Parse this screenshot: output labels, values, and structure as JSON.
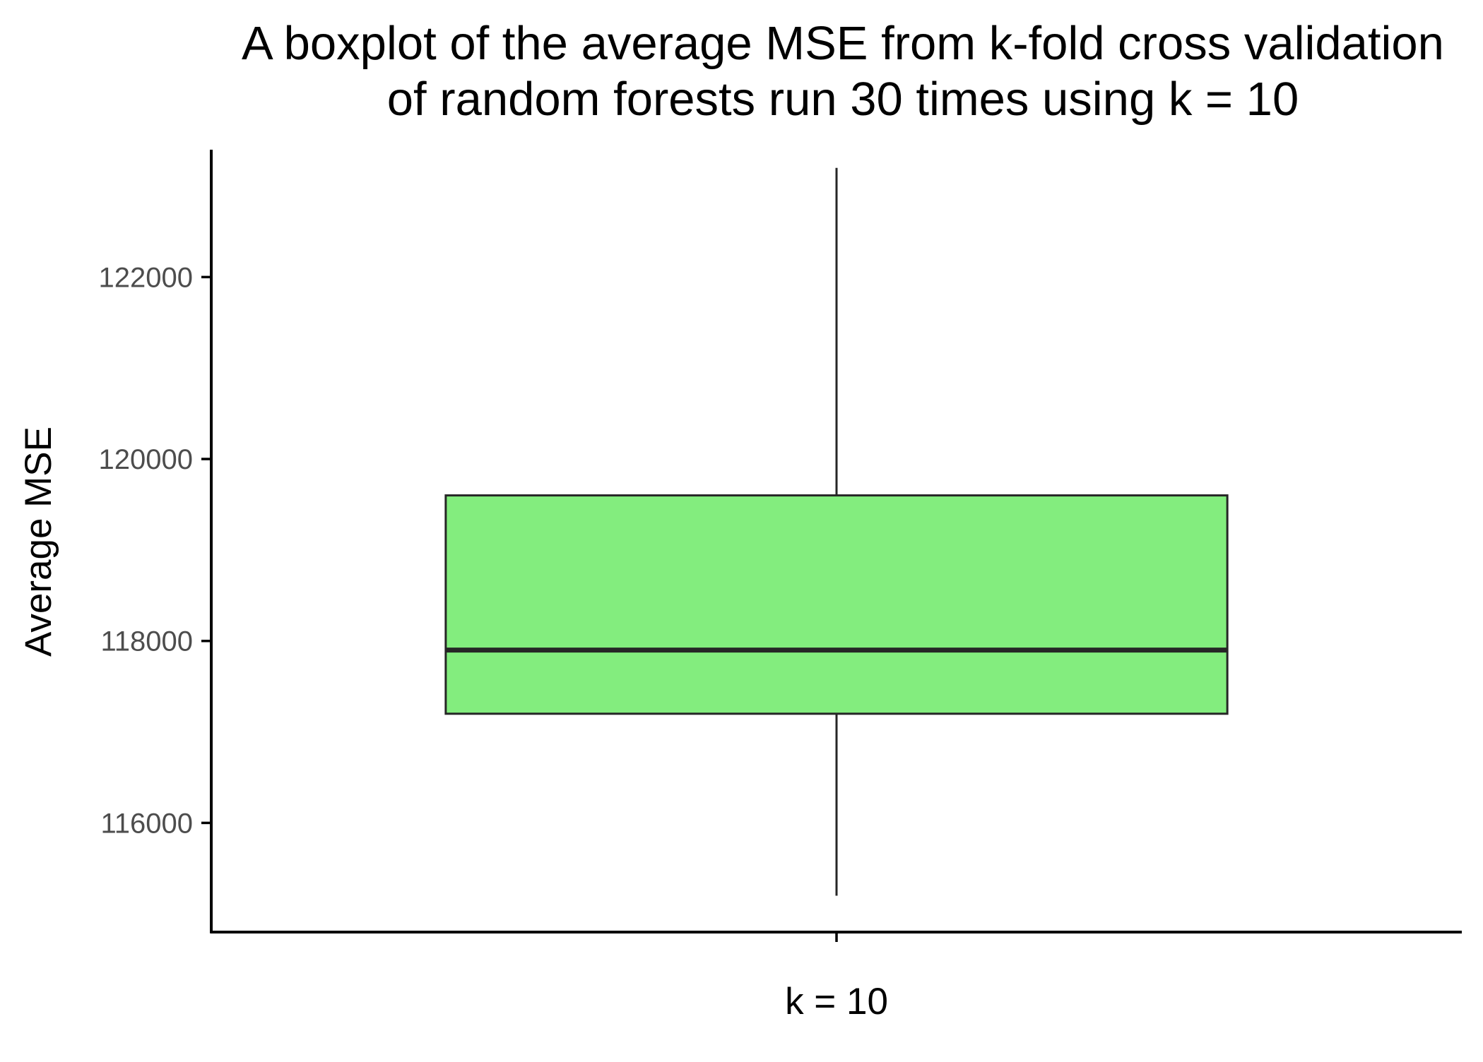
{
  "chart_data": {
    "type": "boxplot",
    "title": "A boxplot of the average MSE from k-fold cross validation\nof random forests run 30 times using k = 10",
    "title_lines": [
      "A boxplot of the average MSE from k-fold cross validation",
      "of random forests run 30 times using k = 10"
    ],
    "xlabel": "",
    "ylabel": "Average MSE",
    "categories": [
      "k = 10"
    ],
    "ylim": [
      114800,
      123400
    ],
    "yticks": [
      116000,
      118000,
      120000,
      122000
    ],
    "ytick_labels": [
      "116000",
      "118000",
      "120000",
      "122000"
    ],
    "boxes": [
      {
        "category": "k = 10",
        "min": 115200,
        "q1": 117200,
        "median": 117900,
        "q3": 119600,
        "max": 123200
      }
    ],
    "grid": false,
    "legend": "none",
    "colors": {
      "box_fill": "#83ED7E",
      "box_stroke": "#262626",
      "axis": "#000000",
      "tick_text": "#4d4d4d"
    }
  }
}
